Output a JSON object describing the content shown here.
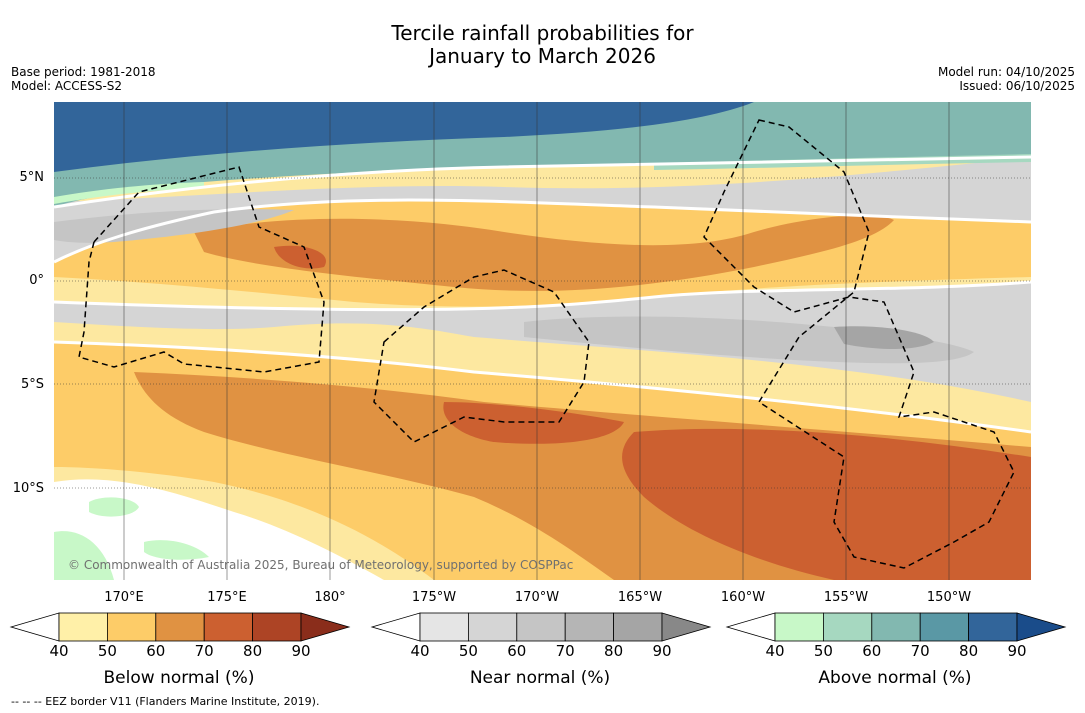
{
  "title": {
    "line1": "Tercile rainfall probabilities for",
    "line2": "January to March 2026"
  },
  "meta_left": {
    "base_period": "Base period: 1981-2018",
    "model": "Model: ACCESS-S2"
  },
  "meta_right": {
    "model_run": "Model run: 04/10/2025",
    "issued": "Issued: 06/10/2025"
  },
  "map": {
    "lat_labels": [
      "5°N",
      "0°",
      "5°S",
      "10°S"
    ],
    "lon_labels": [
      "170°E",
      "175°E",
      "180°",
      "175°W",
      "170°W",
      "165°W",
      "160°W",
      "155°W",
      "150°W"
    ],
    "copyright": "© Commonwealth of Australia 2025, Bureau of Meteorology, supported by COSPPac"
  },
  "colorbars": [
    {
      "title": "Below normal (%)",
      "ticks": [
        "40",
        "50",
        "60",
        "70",
        "80",
        "90"
      ],
      "colors": [
        "#fff0a8",
        "#fdcc68",
        "#e09242",
        "#cc6030",
        "#ad4425",
        "#8a2d1b"
      ]
    },
    {
      "title": "Near normal (%)",
      "ticks": [
        "40",
        "50",
        "60",
        "70",
        "80",
        "90"
      ],
      "colors": [
        "#e5e5e5",
        "#d5d5d5",
        "#c5c5c5",
        "#b5b5b5",
        "#a5a5a5",
        "#888888"
      ]
    },
    {
      "title": "Above normal (%)",
      "ticks": [
        "40",
        "50",
        "60",
        "70",
        "80",
        "90"
      ],
      "colors": [
        "#c8f8c8",
        "#a6d8c0",
        "#82b8b0",
        "#5a98a5",
        "#32659a",
        "#1a4c8a"
      ]
    }
  ],
  "footer": "--  --  -- EEZ border V11 (Flanders Marine Institute, 2019)."
}
